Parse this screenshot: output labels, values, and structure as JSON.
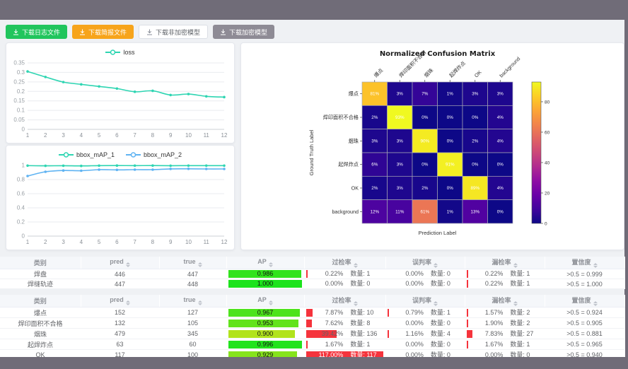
{
  "toolbar": {
    "buttons": [
      {
        "label": "下载日志文件",
        "type": "green"
      },
      {
        "label": "下载简报文件",
        "type": "orange"
      },
      {
        "label": "下载非加密模型",
        "type": "plain"
      },
      {
        "label": "下载加密模型",
        "type": "gray"
      }
    ]
  },
  "chart_data": [
    {
      "id": "loss",
      "type": "line",
      "legend": [
        "loss"
      ],
      "legend_position": "top",
      "grid": true,
      "x": [
        1,
        2,
        3,
        4,
        5,
        6,
        7,
        8,
        9,
        10,
        11,
        12
      ],
      "series": [
        {
          "name": "loss",
          "color": "#2ed5b2",
          "values": [
            0.305,
            0.276,
            0.249,
            0.237,
            0.226,
            0.215,
            0.198,
            0.203,
            0.181,
            0.186,
            0.174,
            0.17
          ]
        }
      ],
      "ylim": [
        0,
        0.35
      ],
      "yticks": [
        0,
        0.05,
        0.1,
        0.15,
        0.2,
        0.25,
        0.3,
        0.35
      ]
    },
    {
      "id": "map",
      "type": "line",
      "legend": [
        "bbox_mAP_1",
        "bbox_mAP_2"
      ],
      "legend_position": "top",
      "grid": true,
      "x": [
        1,
        2,
        3,
        4,
        5,
        6,
        7,
        8,
        9,
        10,
        11,
        12
      ],
      "series": [
        {
          "name": "bbox_mAP_1",
          "color": "#2ed5b2",
          "values": [
            0.997,
            0.994,
            0.996,
            0.993,
            0.997,
            0.998,
            0.997,
            0.998,
            0.996,
            0.997,
            0.997,
            0.997
          ]
        },
        {
          "name": "bbox_mAP_2",
          "color": "#5fb3f2",
          "values": [
            0.85,
            0.91,
            0.928,
            0.925,
            0.94,
            0.937,
            0.94,
            0.94,
            0.951,
            0.952,
            0.95,
            0.95
          ]
        }
      ],
      "ylim": [
        0,
        1
      ],
      "yticks": [
        0,
        0.2,
        0.4,
        0.6,
        0.8,
        1
      ]
    },
    {
      "id": "confusion_matrix",
      "type": "heatmap",
      "title": "Normalized Confusion Matrix",
      "xlabel": "Prediction Label",
      "ylabel": "Ground Truth Label",
      "colormap": "plasma",
      "unit": "%",
      "vmax": 93,
      "colorbar_ticks": [
        0,
        20,
        40,
        60,
        80
      ],
      "labels": [
        "爆点",
        "焊印面积不合格",
        "烟珠",
        "起焊炸点",
        "OK",
        "background"
      ],
      "values": [
        [
          81,
          3,
          7,
          1,
          3,
          3
        ],
        [
          2,
          93,
          0,
          0,
          0,
          4
        ],
        [
          3,
          3,
          90,
          0,
          2,
          4
        ],
        [
          6,
          3,
          0,
          91,
          0,
          0
        ],
        [
          2,
          3,
          2,
          0,
          89,
          4
        ],
        [
          12,
          11,
          61,
          1,
          13,
          0
        ]
      ]
    }
  ],
  "tables": {
    "count_label": "数量:",
    "headers": [
      "类别",
      "pred",
      "true",
      "AP",
      "过检率",
      "误判率",
      "漏检率",
      "置信度"
    ],
    "table1": {
      "rows": [
        {
          "label": "焊盘",
          "pred": 446,
          "true": 447,
          "ap": "0.986",
          "ap_val": 0.986,
          "over": {
            "pct": "0.22%",
            "val": 0.22,
            "count": 1
          },
          "mis": {
            "pct": "0.00%",
            "val": 0,
            "count": 0
          },
          "miss": {
            "pct": "0.22%",
            "val": 0.22,
            "count": 1
          },
          "conf": ">0.5 = 0.999"
        },
        {
          "label": "焊缝轨迹",
          "pred": 447,
          "true": 448,
          "ap": "1.000",
          "ap_val": 1.0,
          "over": {
            "pct": "0.00%",
            "val": 0,
            "count": 0
          },
          "mis": {
            "pct": "0.00%",
            "val": 0,
            "count": 0
          },
          "miss": {
            "pct": "0.22%",
            "val": 0.22,
            "count": 1
          },
          "conf": ">0.5 = 1.000"
        }
      ]
    },
    "table2": {
      "rows": [
        {
          "label": "爆点",
          "pred": 152,
          "true": 127,
          "ap": "0.967",
          "ap_val": 0.967,
          "over": {
            "pct": "7.87%",
            "val": 7.87,
            "count": 10
          },
          "mis": {
            "pct": "0.79%",
            "val": 0.79,
            "count": 1
          },
          "miss": {
            "pct": "1.57%",
            "val": 1.57,
            "count": 2
          },
          "conf": ">0.5 = 0.924"
        },
        {
          "label": "焊印面积不合格",
          "pred": 132,
          "true": 105,
          "ap": "0.953",
          "ap_val": 0.953,
          "over": {
            "pct": "7.62%",
            "val": 7.62,
            "count": 8
          },
          "mis": {
            "pct": "0.00%",
            "val": 0,
            "count": 0
          },
          "miss": {
            "pct": "1.90%",
            "val": 1.9,
            "count": 2
          },
          "conf": ">0.5 = 0.905"
        },
        {
          "label": "烟珠",
          "pred": 479,
          "true": 345,
          "ap": "0.900",
          "ap_val": 0.9,
          "over": {
            "pct": "39.42%",
            "val": 39.42,
            "count": 136
          },
          "mis": {
            "pct": "1.16%",
            "val": 1.16,
            "count": 4
          },
          "miss": {
            "pct": "7.83%",
            "val": 7.83,
            "count": 27
          },
          "conf": ">0.5 = 0.881"
        },
        {
          "label": "起焊炸点",
          "pred": 63,
          "true": 60,
          "ap": "0.996",
          "ap_val": 0.996,
          "over": {
            "pct": "1.67%",
            "val": 1.67,
            "count": 1
          },
          "mis": {
            "pct": "0.00%",
            "val": 0,
            "count": 0
          },
          "miss": {
            "pct": "1.67%",
            "val": 1.67,
            "count": 1
          },
          "conf": ">0.5 = 0.965"
        },
        {
          "label": "OK",
          "pred": 117,
          "true": 100,
          "ap": "0.929",
          "ap_val": 0.929,
          "over": {
            "pct": "117.00%",
            "val": 117,
            "count": 117
          },
          "mis": {
            "pct": "0.00%",
            "val": 0,
            "count": 0
          },
          "miss": {
            "pct": "0.00%",
            "val": 0,
            "count": 0
          },
          "conf": ">0.5 = 0.940"
        }
      ]
    }
  }
}
